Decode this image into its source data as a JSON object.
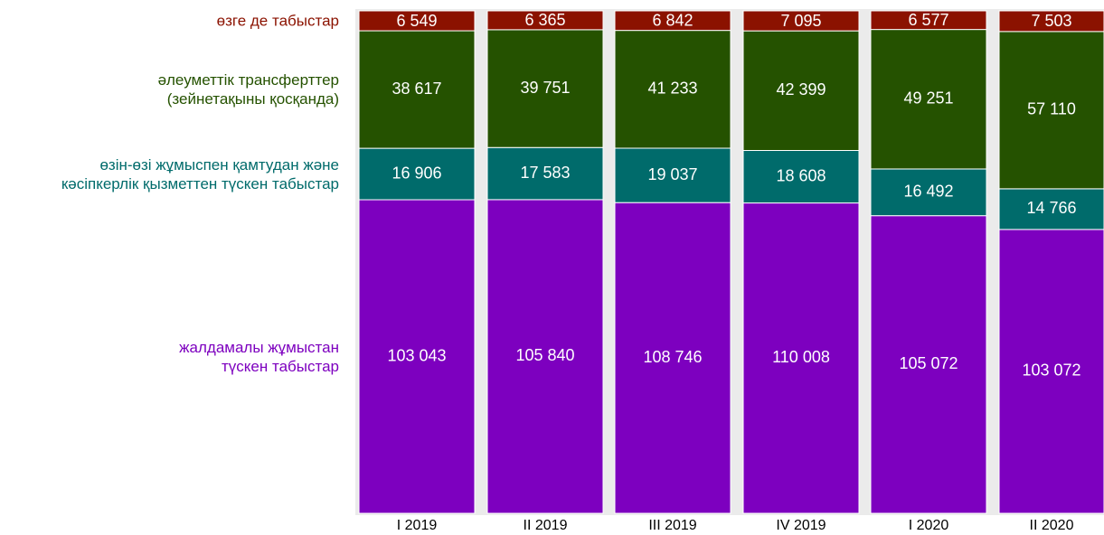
{
  "chart_data": {
    "type": "stacked_bar_100",
    "categories": [
      "I 2019",
      "II 2019",
      "III 2019",
      "IV 2019",
      "I 2020",
      "II 2020"
    ],
    "series": [
      {
        "name": "жалдамалы жұмыстан\nтүскен табыстар",
        "color": "#7d00bf",
        "values": [
          103043,
          105840,
          108746,
          110008,
          105072,
          103072
        ],
        "value_labels": [
          "103 043",
          "105 840",
          "108 746",
          "110 008",
          "105 072",
          "103 072"
        ]
      },
      {
        "name": "өзін-өзі жұмыспен қамтудан және\nкәсіпкерлік қызметтен түскен табыстар",
        "color": "#006b6b",
        "values": [
          16906,
          17583,
          19037,
          18608,
          16492,
          14766
        ],
        "value_labels": [
          "16 906",
          "17 583",
          "19 037",
          "18 608",
          "16 492",
          "14 766"
        ]
      },
      {
        "name": "әлеуметтік трансферттер\n(зейнетақыны қосқанда)",
        "color": "#255200",
        "values": [
          38617,
          39751,
          41233,
          42399,
          49251,
          57110
        ],
        "value_labels": [
          "38 617",
          "39 751",
          "41 233",
          "42 399",
          "49 251",
          "57 110"
        ]
      },
      {
        "name": "өзге де табыстар",
        "color": "#8b1200",
        "values": [
          6549,
          6365,
          6842,
          7095,
          6577,
          7503
        ],
        "value_labels": [
          "6 549",
          "6 365",
          "6 842",
          "7 095",
          "6 577",
          "7 503"
        ]
      }
    ]
  }
}
